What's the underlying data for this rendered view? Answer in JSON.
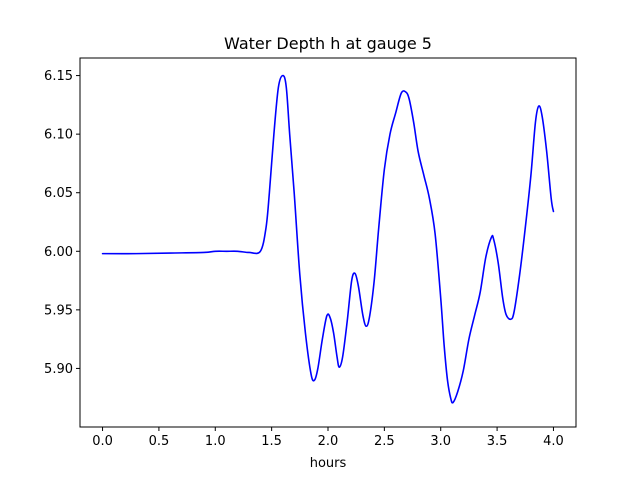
{
  "chart_data": {
    "type": "line",
    "title": "Water Depth h at gauge 5",
    "xlabel": "hours",
    "ylabel": "",
    "xlim": [
      -0.2,
      4.2
    ],
    "ylim": [
      5.85,
      6.165
    ],
    "xticks": [
      0.0,
      0.5,
      1.0,
      1.5,
      2.0,
      2.5,
      3.0,
      3.5,
      4.0
    ],
    "xtick_labels": [
      "0.0",
      "0.5",
      "1.0",
      "1.5",
      "2.0",
      "2.5",
      "3.0",
      "3.5",
      "4.0"
    ],
    "yticks": [
      5.9,
      5.95,
      6.0,
      6.05,
      6.1,
      6.15
    ],
    "ytick_labels": [
      "5.90",
      "5.95",
      "6.00",
      "6.05",
      "6.10",
      "6.15"
    ],
    "grid": false,
    "legend": "none",
    "series": [
      {
        "color": "#0000ff",
        "x": [
          0.0,
          0.3,
          0.6,
          0.9,
          1.0,
          1.1,
          1.2,
          1.3,
          1.4,
          1.45,
          1.48,
          1.52,
          1.56,
          1.6,
          1.63,
          1.66,
          1.7,
          1.75,
          1.8,
          1.85,
          1.88,
          1.91,
          1.95,
          1.99,
          2.02,
          2.05,
          2.08,
          2.1,
          2.13,
          2.17,
          2.21,
          2.24,
          2.27,
          2.31,
          2.34,
          2.37,
          2.41,
          2.45,
          2.5,
          2.55,
          2.6,
          2.65,
          2.69,
          2.72,
          2.76,
          2.8,
          2.85,
          2.9,
          2.95,
          3.0,
          3.03,
          3.06,
          3.09,
          3.11,
          3.15,
          3.2,
          3.25,
          3.3,
          3.35,
          3.4,
          3.45,
          3.47,
          3.51,
          3.55,
          3.58,
          3.62,
          3.65,
          3.7,
          3.75,
          3.8,
          3.84,
          3.87,
          3.9,
          3.94,
          3.98,
          4.0
        ],
        "y": [
          5.998,
          5.998,
          5.9985,
          5.999,
          6.0,
          6.0,
          6.0,
          5.999,
          6.0,
          6.02,
          6.05,
          6.1,
          6.14,
          6.15,
          6.14,
          6.1,
          6.05,
          5.98,
          5.93,
          5.895,
          5.89,
          5.9,
          5.925,
          5.945,
          5.943,
          5.93,
          5.91,
          5.901,
          5.91,
          5.94,
          5.975,
          5.981,
          5.97,
          5.945,
          5.936,
          5.945,
          5.975,
          6.02,
          6.07,
          6.1,
          6.118,
          6.135,
          6.136,
          6.13,
          6.11,
          6.085,
          6.065,
          6.045,
          6.015,
          5.96,
          5.92,
          5.89,
          5.874,
          5.871,
          5.88,
          5.898,
          5.925,
          5.945,
          5.965,
          5.995,
          6.012,
          6.01,
          5.99,
          5.96,
          5.946,
          5.942,
          5.948,
          5.98,
          6.02,
          6.065,
          6.11,
          6.124,
          6.115,
          6.085,
          6.045,
          6.034
        ]
      }
    ]
  }
}
